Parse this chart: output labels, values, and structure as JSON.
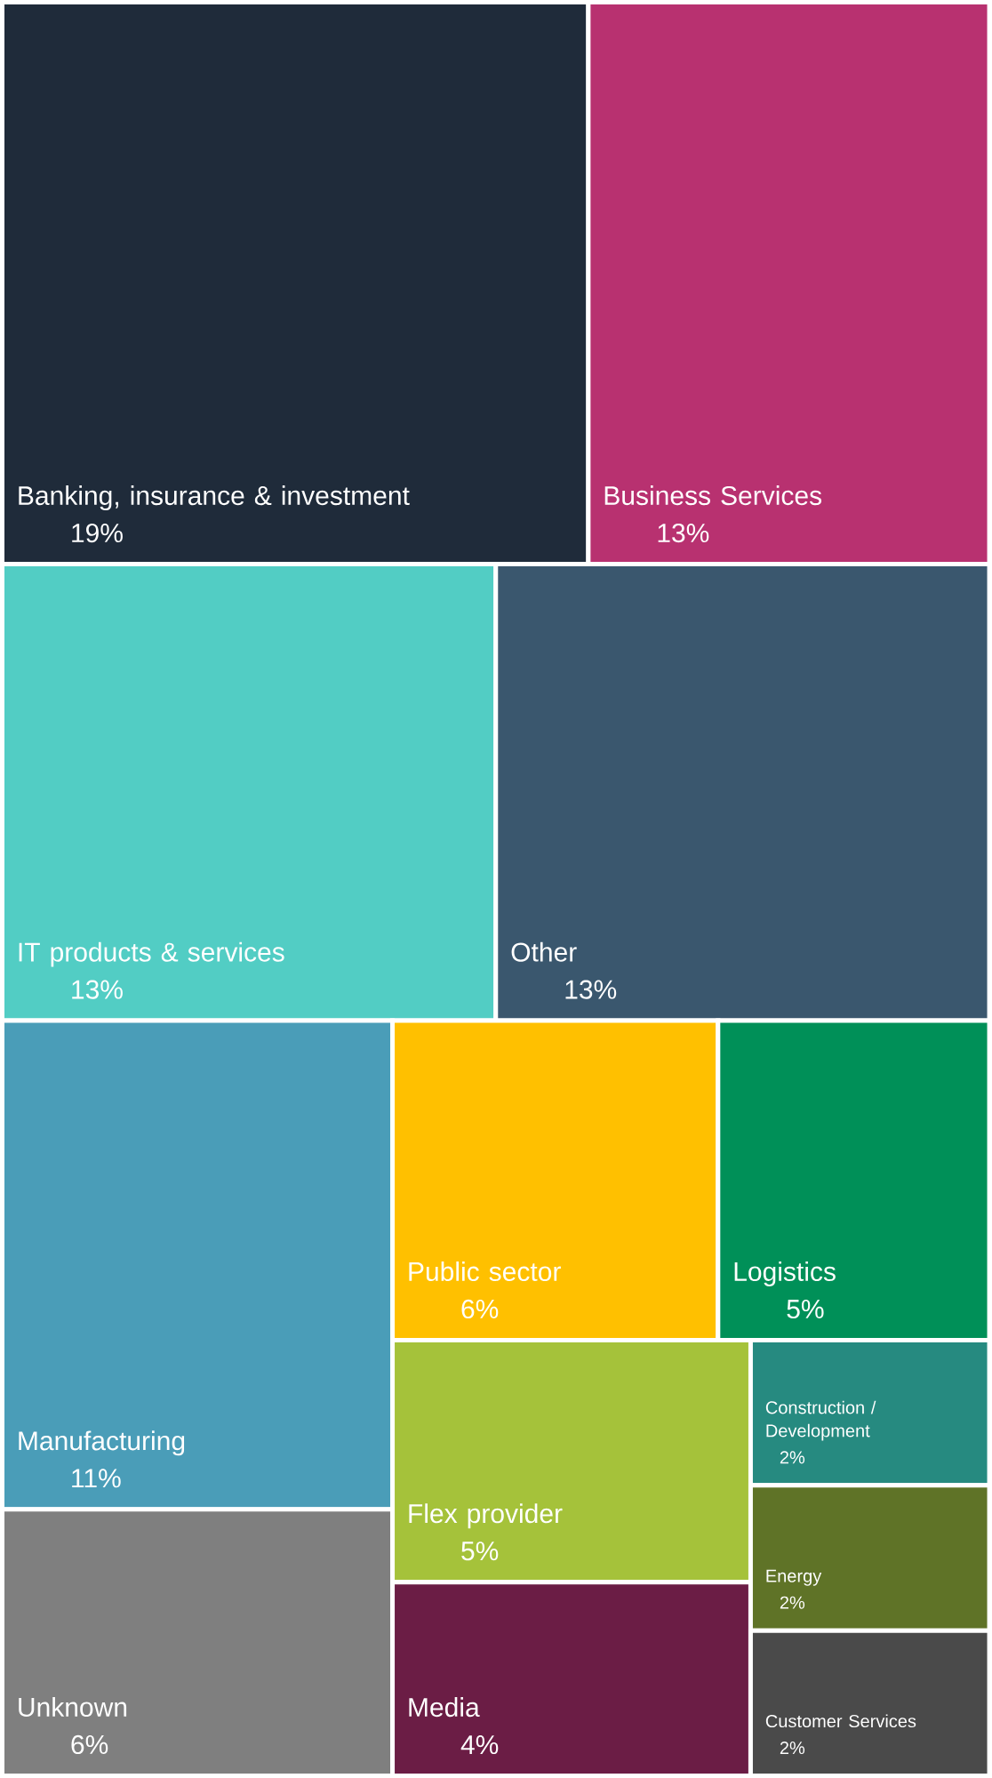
{
  "chart_data": {
    "type": "other",
    "categories": [
      "Banking, insurance & investment",
      "Business Services",
      "IT products & services",
      "Other",
      "Manufacturing",
      "Unknown",
      "Public sector",
      "Logistics",
      "Flex provider",
      "Media",
      "Construction / Development",
      "Energy",
      "Customer Services"
    ],
    "values": [
      19,
      13,
      13,
      13,
      11,
      6,
      6,
      5,
      5,
      4,
      2,
      2,
      2
    ],
    "value_labels": [
      "19%",
      "13%",
      "13%",
      "13%",
      "11%",
      "6%",
      "6%",
      "5%",
      "5%",
      "4%",
      "2%",
      "2%",
      "2%"
    ],
    "colors": [
      "#1f2b3a",
      "#b83170",
      "#52cdc4",
      "#3a576e",
      "#4a9db8",
      "#7f7f7f",
      "#ffc000",
      "#009058",
      "#a5c23a",
      "#6b1d45",
      "#268a80",
      "#5f7327",
      "#4a4a4a"
    ]
  }
}
